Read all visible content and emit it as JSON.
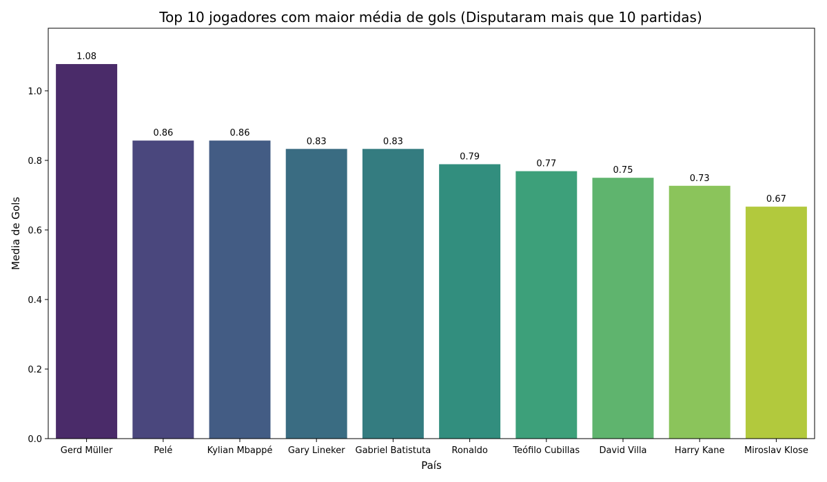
{
  "chart_data": {
    "type": "bar",
    "title": "Top 10 jogadores com maior média de gols (Disputaram mais que 10 partidas)",
    "xlabel": "País",
    "ylabel": "Media de Gols",
    "categories": [
      "Gerd Müller",
      "Pelé",
      "Kylian Mbappé",
      "Gary Lineker",
      "Gabriel Batistuta",
      "Ronaldo",
      "Teófilo Cubillas",
      "David Villa",
      "Harry Kane",
      "Miroslav Klose"
    ],
    "values": [
      1.077,
      0.857,
      0.857,
      0.833,
      0.833,
      0.789,
      0.769,
      0.75,
      0.727,
      0.667
    ],
    "labels": [
      "1.08",
      "0.86",
      "0.86",
      "0.83",
      "0.83",
      "0.79",
      "0.77",
      "0.75",
      "0.73",
      "0.67"
    ],
    "colors": [
      "#4a2b69",
      "#4a477d",
      "#435c84",
      "#3a6c82",
      "#347c80",
      "#328e7e",
      "#3da07a",
      "#5fb46e",
      "#8bc45b",
      "#b2c93d"
    ],
    "ylim": [
      0,
      1.18
    ],
    "yticks": [
      0.0,
      0.2,
      0.4,
      0.6,
      0.8,
      1.0
    ],
    "ytick_labels": [
      "0.0",
      "0.2",
      "0.4",
      "0.6",
      "0.8",
      "1.0"
    ],
    "grid": false,
    "legend": "none"
  }
}
